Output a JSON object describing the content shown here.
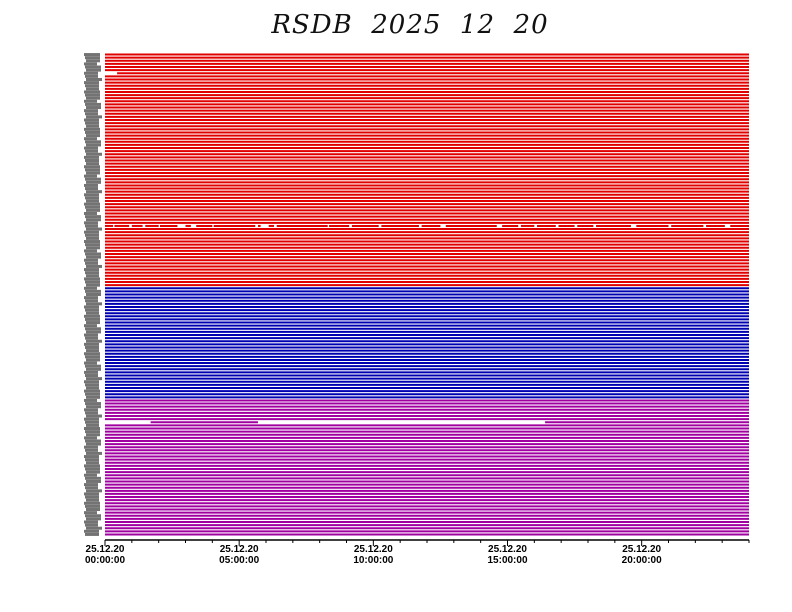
{
  "chart_data": {
    "type": "line",
    "title": "RSDB  2025  12  20",
    "x_axis": {
      "range": [
        "25.12.20 00:00:00",
        "25.12.20 24:00:00"
      ],
      "ticks": [
        {
          "date": "25.12.20",
          "time": "00:00:00"
        },
        {
          "date": "25.12.20",
          "time": "05:00:00"
        },
        {
          "date": "25.12.20",
          "time": "10:00:00"
        },
        {
          "date": "25.12.20",
          "time": "15:00:00"
        },
        {
          "date": "25.12.20",
          "time": "20:00:00"
        }
      ],
      "minor_tick_interval_hours": 1
    },
    "groups": [
      {
        "color": "#e00000",
        "trace_count": 75
      },
      {
        "color": "#0000b0",
        "trace_count": 36
      },
      {
        "color": "#a000a0",
        "trace_count": 44
      }
    ],
    "gaps": [
      {
        "group": 0,
        "trace": 6,
        "intervals_hours": [
          [
            0.0,
            0.45
          ]
        ]
      },
      {
        "group": 0,
        "trace": 55,
        "intervals_hours": [
          [
            0.3,
            0.35
          ],
          [
            0.9,
            1.0
          ],
          [
            1.4,
            1.5
          ],
          [
            2.0,
            2.05
          ],
          [
            2.7,
            2.8
          ],
          [
            2.8,
            3.0
          ],
          [
            3.2,
            3.4
          ],
          [
            4.0,
            4.05
          ],
          [
            5.6,
            5.7
          ],
          [
            5.8,
            6.1
          ],
          [
            6.3,
            6.4
          ],
          [
            8.3,
            8.35
          ],
          [
            9.1,
            9.2
          ],
          [
            10.2,
            10.3
          ],
          [
            11.7,
            11.8
          ],
          [
            12.5,
            12.7
          ],
          [
            14.6,
            14.8
          ],
          [
            15.4,
            15.5
          ],
          [
            16.0,
            16.1
          ],
          [
            16.8,
            16.9
          ],
          [
            17.5,
            17.6
          ],
          [
            18.2,
            18.3
          ],
          [
            19.6,
            19.8
          ],
          [
            21.0,
            21.1
          ],
          [
            22.3,
            22.4
          ],
          [
            23.1,
            23.3
          ]
        ]
      },
      {
        "group": 2,
        "trace": 7,
        "intervals_hours": [
          [
            0.0,
            1.7
          ],
          [
            5.7,
            16.4
          ]
        ]
      }
    ]
  }
}
